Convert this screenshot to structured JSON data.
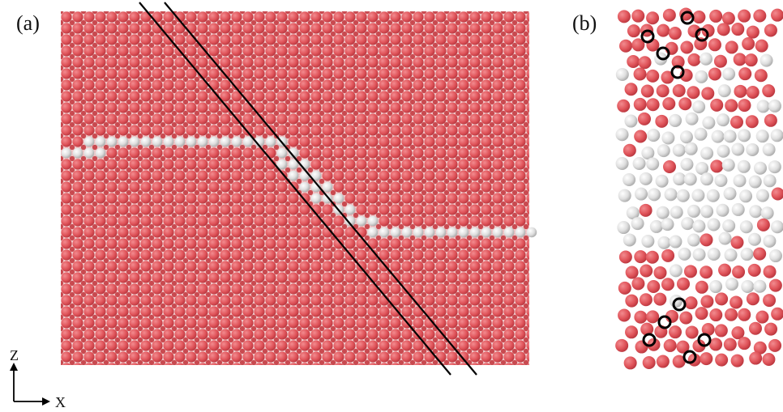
{
  "figure": {
    "panel_a_label": "(a)",
    "panel_b_label": "(b)",
    "axis_z_label": "Z",
    "axis_x_label": "X"
  },
  "colors": {
    "matrix_atom": "#e0545a",
    "matrix_atom_shade": "#c13e46",
    "interface_atom": "#dcdcdc",
    "interface_atom_shade": "#b8b8b8",
    "marker": "#000000"
  }
}
